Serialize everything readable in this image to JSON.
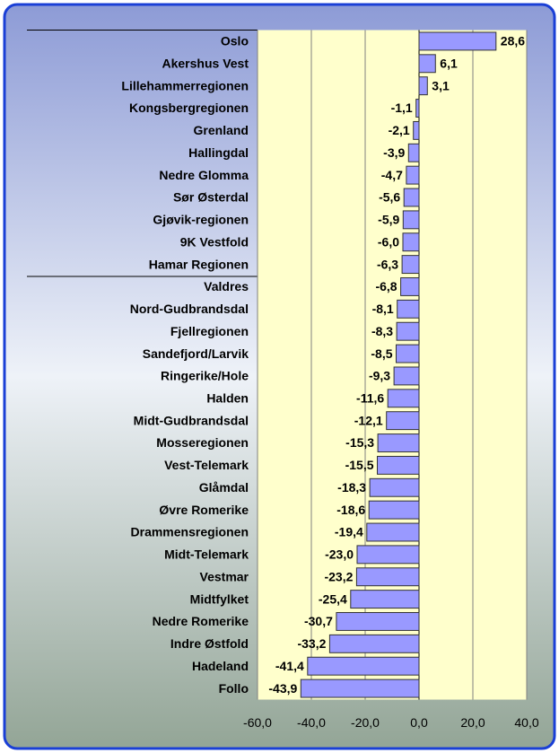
{
  "chart_data": {
    "type": "bar",
    "orientation": "horizontal",
    "categories": [
      "Oslo",
      "Akershus Vest",
      "Lillehammerregionen",
      "Kongsbergregionen",
      "Grenland",
      "Hallingdal",
      "Nedre Glomma",
      "Sør Østerdal",
      "Gjøvik-regionen",
      "9K Vestfold",
      "Hamar Regionen",
      "Valdres",
      "Nord-Gudbrandsdal",
      "Fjellregionen",
      "Sandefjord/Larvik",
      "Ringerike/Hole",
      "Halden",
      "Midt-Gudbrandsdal",
      "Mosseregionen",
      "Vest-Telemark",
      "Glåmdal",
      "Øvre Romerike",
      "Drammensregionen",
      "Midt-Telemark",
      "Vestmar",
      "Midtfylket",
      "Nedre Romerike",
      "Indre Østfold",
      "Hadeland",
      "Follo"
    ],
    "values": [
      28.6,
      6.1,
      3.1,
      -1.1,
      -2.1,
      -3.9,
      -4.7,
      -5.6,
      -5.9,
      -6.0,
      -6.3,
      -6.8,
      -8.1,
      -8.3,
      -8.5,
      -9.3,
      -11.6,
      -12.1,
      -15.3,
      -15.5,
      -18.3,
      -18.6,
      -19.4,
      -23.0,
      -23.2,
      -25.4,
      -30.7,
      -33.2,
      -41.4,
      -43.9
    ],
    "value_labels": [
      "28,6",
      "6,1",
      "3,1",
      "-1,1",
      "-2,1",
      "-3,9",
      "-4,7",
      "-5,6",
      "-5,9",
      "-6,0",
      "-6,3",
      "-6,8",
      "-8,1",
      "-8,3",
      "-8,5",
      "-9,3",
      "-11,6",
      "-12,1",
      "-15,3",
      "-15,5",
      "-18,3",
      "-18,6",
      "-19,4",
      "-23,0",
      "-23,2",
      "-25,4",
      "-30,7",
      "-33,2",
      "-41,4",
      "-43,9"
    ],
    "color": "#9999ff",
    "xlim": [
      -60,
      40
    ],
    "xticks": [
      {
        "value": -60,
        "label": "-60,0"
      },
      {
        "value": -40,
        "label": "-40,0"
      },
      {
        "value": -20,
        "label": "-20,0"
      },
      {
        "value": 0,
        "label": "0,0"
      },
      {
        "value": 20,
        "label": "20,0"
      },
      {
        "value": 40,
        "label": "40,0"
      }
    ],
    "grid": true
  }
}
